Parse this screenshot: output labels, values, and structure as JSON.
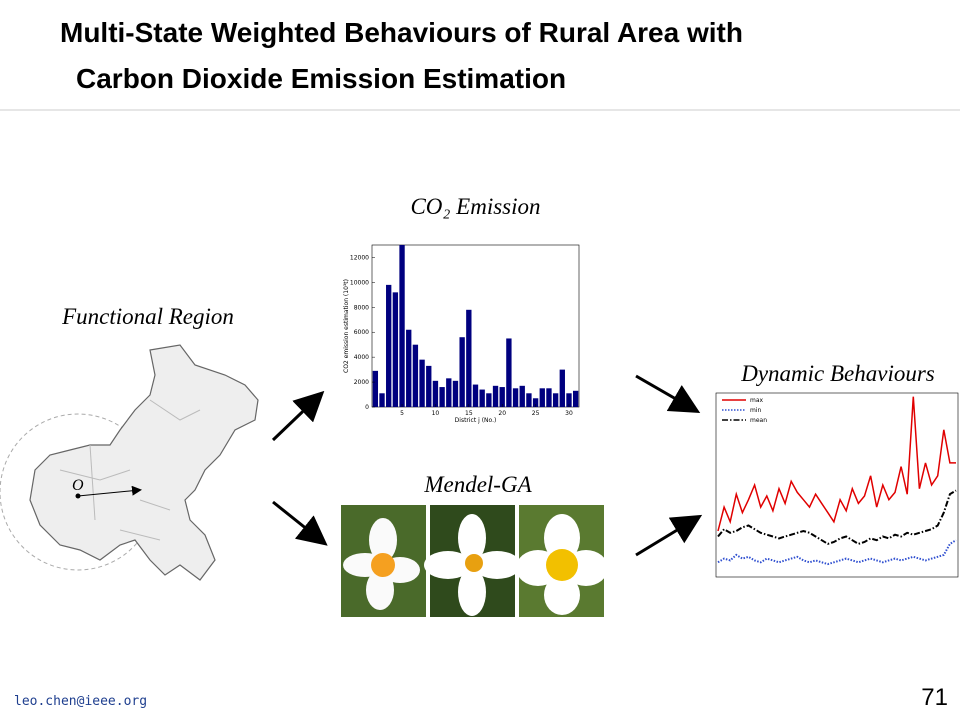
{
  "title_lines": [
    "Multi-State Weighted Behaviours of Rural Area with",
    "Carbon Dioxide Emission Estimation"
  ],
  "labels": {
    "functional_region": "Functional Region",
    "origin": "O",
    "mendel_ga": "Mendel-GA"
  },
  "footer": {
    "email": "leo.chen@ieee.org",
    "page": "71"
  },
  "chart_data": [
    {
      "type": "bar",
      "title": "CO₂ Emission",
      "xlabel": "District j (No.)",
      "ylabel": "CO2 emission estimation (10³t)",
      "x": [
        1,
        2,
        3,
        4,
        5,
        6,
        7,
        8,
        9,
        10,
        11,
        12,
        13,
        14,
        15,
        16,
        17,
        18,
        19,
        20,
        21,
        22,
        23,
        24,
        25,
        26,
        27,
        28,
        29,
        30,
        31
      ],
      "values": [
        2900,
        1100,
        9800,
        9200,
        13000,
        6200,
        5000,
        3800,
        3300,
        2100,
        1600,
        2300,
        2100,
        5600,
        7800,
        1800,
        1400,
        1100,
        1700,
        1600,
        5500,
        1500,
        1700,
        1100,
        700,
        1500,
        1500,
        1100,
        3000,
        1100,
        1300
      ],
      "color": "#00007f",
      "xlim": [
        0.5,
        31.5
      ],
      "xticks": [
        5,
        10,
        15,
        20,
        25,
        30
      ],
      "ylim": [
        0,
        13000
      ],
      "yticks": [
        0,
        2000,
        4000,
        6000,
        8000,
        10000,
        12000
      ]
    },
    {
      "type": "line",
      "title": "Dynamic Behaviours",
      "ylim": [
        0,
        100
      ],
      "legend": "upper left",
      "series": [
        {
          "name": "max",
          "color": "#e00000",
          "style": "solid",
          "values": [
            25,
            38,
            30,
            45,
            35,
            42,
            50,
            38,
            44,
            36,
            48,
            40,
            52,
            46,
            42,
            38,
            45,
            40,
            35,
            30,
            42,
            36,
            48,
            40,
            44,
            55,
            38,
            50,
            42,
            46,
            60,
            45,
            98,
            48,
            62,
            50,
            55,
            80,
            62,
            62
          ]
        },
        {
          "name": "min",
          "color": "#3050d0",
          "style": "dotted",
          "values": [
            8,
            10,
            9,
            12,
            10,
            11,
            9,
            8,
            10,
            9,
            8,
            9,
            10,
            11,
            9,
            8,
            9,
            8,
            7,
            8,
            9,
            10,
            9,
            8,
            9,
            10,
            9,
            8,
            9,
            10,
            9,
            10,
            11,
            10,
            9,
            10,
            11,
            12,
            18,
            20
          ]
        },
        {
          "name": "mean",
          "color": "#000000",
          "style": "dashdot",
          "values": [
            22,
            26,
            24,
            25,
            27,
            28,
            26,
            24,
            23,
            22,
            21,
            22,
            23,
            24,
            25,
            24,
            22,
            20,
            18,
            19,
            21,
            22,
            20,
            18,
            19,
            21,
            20,
            22,
            21,
            23,
            22,
            24,
            23,
            24,
            25,
            26,
            28,
            35,
            45,
            47
          ]
        }
      ]
    }
  ]
}
